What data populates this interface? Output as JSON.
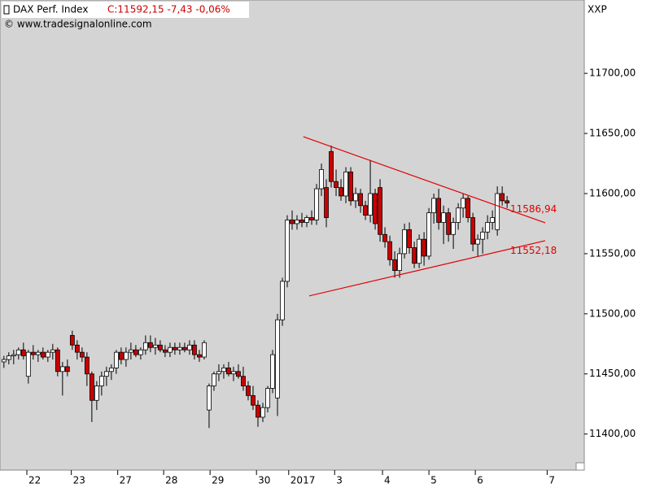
{
  "chart_data": {
    "type": "candlestick",
    "title": "DAX Perf. Index",
    "quote": "C:11592,15 -7,43 -0,06%",
    "source": "© www.tradesignalonline.com",
    "symbol": "XXP",
    "up_color": "#ffffff",
    "down_color": "#cc0000",
    "open": [
      11460,
      11462,
      11465,
      11466,
      11470,
      11448,
      11468,
      11466,
      11468,
      11464,
      11468,
      11470,
      11452,
      11456,
      11482,
      11474,
      11468,
      11464,
      11450,
      11428,
      11440,
      11448,
      11452,
      11455,
      11468,
      11462,
      11468,
      11470,
      11466,
      11470,
      11476,
      11472,
      11474,
      11470,
      11468,
      11472,
      11470,
      11472,
      11470,
      11474,
      11466,
      11464,
      11420,
      11440,
      11450,
      11452,
      11455,
      11450,
      11452,
      11448,
      11440,
      11432,
      11424,
      11414,
      11422,
      11438,
      11430,
      11495,
      11527,
      11578,
      11575,
      11578,
      11576,
      11580,
      11578,
      11604,
      11605,
      11635,
      11610,
      11605,
      11598,
      11618,
      11594,
      11600,
      11590,
      11582,
      11600,
      11605,
      11566,
      11560,
      11545,
      11536,
      11550,
      11570,
      11555,
      11542,
      11562,
      11548,
      11584,
      11596,
      11576,
      11584,
      11566,
      11576,
      11588,
      11596,
      11580,
      11558,
      11562,
      11568,
      11576,
      11570,
      11600,
      11594
    ],
    "high": [
      11465,
      11468,
      11470,
      11472,
      11476,
      11470,
      11474,
      11470,
      11472,
      11470,
      11475,
      11472,
      11460,
      11462,
      11486,
      11478,
      11472,
      11468,
      11452,
      11444,
      11452,
      11456,
      11458,
      11470,
      11472,
      11472,
      11476,
      11474,
      11472,
      11482,
      11482,
      11480,
      11478,
      11474,
      11476,
      11476,
      11476,
      11476,
      11478,
      11478,
      11470,
      11478,
      11442,
      11452,
      11458,
      11458,
      11460,
      11456,
      11458,
      11456,
      11444,
      11440,
      11428,
      11426,
      11440,
      11470,
      11500,
      11530,
      11582,
      11586,
      11582,
      11584,
      11582,
      11586,
      11608,
      11625,
      11612,
      11640,
      11620,
      11612,
      11622,
      11622,
      11605,
      11604,
      11594,
      11628,
      11604,
      11612,
      11572,
      11565,
      11552,
      11555,
      11575,
      11576,
      11560,
      11566,
      11568,
      11588,
      11600,
      11604,
      11590,
      11588,
      11580,
      11592,
      11600,
      11598,
      11584,
      11566,
      11572,
      11582,
      11586,
      11606,
      11606,
      11598
    ],
    "low": [
      11455,
      11458,
      11458,
      11462,
      11462,
      11442,
      11462,
      11460,
      11462,
      11460,
      11462,
      11448,
      11432,
      11448,
      11470,
      11462,
      11460,
      11440,
      11410,
      11420,
      11432,
      11440,
      11445,
      11450,
      11458,
      11456,
      11462,
      11464,
      11462,
      11466,
      11468,
      11466,
      11468,
      11464,
      11464,
      11466,
      11466,
      11468,
      11466,
      11462,
      11460,
      11462,
      11405,
      11436,
      11444,
      11446,
      11448,
      11444,
      11446,
      11436,
      11428,
      11420,
      11406,
      11410,
      11418,
      11434,
      11415,
      11490,
      11522,
      11570,
      11570,
      11572,
      11572,
      11574,
      11574,
      11598,
      11572,
      11605,
      11598,
      11594,
      11592,
      11590,
      11588,
      11584,
      11578,
      11576,
      11570,
      11560,
      11555,
      11540,
      11530,
      11530,
      11546,
      11550,
      11538,
      11538,
      11540,
      11545,
      11575,
      11570,
      11558,
      11560,
      11554,
      11570,
      11580,
      11576,
      11552,
      11548,
      11550,
      11562,
      11570,
      11565,
      11590,
      11588
    ],
    "close": [
      11462,
      11465,
      11466,
      11470,
      11465,
      11468,
      11466,
      11468,
      11464,
      11468,
      11470,
      11452,
      11456,
      11452,
      11474,
      11468,
      11464,
      11450,
      11428,
      11440,
      11448,
      11452,
      11455,
      11468,
      11462,
      11468,
      11470,
      11466,
      11470,
      11476,
      11472,
      11474,
      11470,
      11468,
      11472,
      11470,
      11472,
      11470,
      11474,
      11466,
      11464,
      11476,
      11440,
      11450,
      11452,
      11455,
      11450,
      11452,
      11448,
      11440,
      11432,
      11424,
      11414,
      11422,
      11438,
      11466,
      11495,
      11527,
      11578,
      11575,
      11578,
      11576,
      11580,
      11578,
      11604,
      11620,
      11580,
      11610,
      11605,
      11598,
      11618,
      11594,
      11600,
      11590,
      11582,
      11600,
      11575,
      11566,
      11560,
      11545,
      11536,
      11550,
      11570,
      11555,
      11542,
      11562,
      11548,
      11584,
      11596,
      11576,
      11584,
      11566,
      11576,
      11588,
      11596,
      11580,
      11558,
      11562,
      11568,
      11576,
      11580,
      11600,
      11594,
      11592.15
    ],
    "xlim": [
      -0.8,
      118.8
    ],
    "xticks": [
      {
        "value": 4.7,
        "label": "22"
      },
      {
        "value": 13.8,
        "label": "23"
      },
      {
        "value": 23.3,
        "label": "27"
      },
      {
        "value": 32.7,
        "label": "28"
      },
      {
        "value": 42.2,
        "label": "29"
      },
      {
        "value": 51.7,
        "label": "30"
      },
      {
        "value": 58.3,
        "label": "2017"
      },
      {
        "value": 67.7,
        "label": "3"
      },
      {
        "value": 77.5,
        "label": "4"
      },
      {
        "value": 87,
        "label": "5"
      },
      {
        "value": 96.5,
        "label": "6"
      },
      {
        "value": 111.2,
        "label": "7"
      }
    ],
    "ylim": [
      11370,
      11761
    ],
    "yticks": [
      {
        "value": 11400,
        "label": "11400,00"
      },
      {
        "value": 11450,
        "label": "11450,00"
      },
      {
        "value": 11500,
        "label": "11500,00"
      },
      {
        "value": 11550,
        "label": "11550,00"
      },
      {
        "value": 11600,
        "label": "11600,00"
      },
      {
        "value": 11650,
        "label": "11650,00"
      },
      {
        "value": 11700,
        "label": "11700,00"
      }
    ],
    "trendlines": [
      {
        "color": "#e00000",
        "x": [
          61.3,
          110.8
        ],
        "y": [
          11647.3,
          11575.7
        ],
        "label": "11586,94",
        "label_value": 11586.94
      },
      {
        "color": "#e00000",
        "x": [
          62.5,
          110.8
        ],
        "y": [
          11514.9,
          11560.8
        ],
        "label": "11552,18",
        "label_value": 11552.18
      }
    ]
  }
}
